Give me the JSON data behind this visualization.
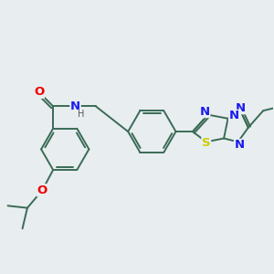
{
  "background_color": "#e8edf0",
  "bond_color": "#3a6b55",
  "atom_colors": {
    "O": "#ee0000",
    "N": "#1a1aee",
    "S": "#cccc00",
    "H": "#444444",
    "C": "#3a6b55"
  },
  "bond_lw": 1.4,
  "font_size": 8.5,
  "xlim": [
    0,
    10
  ],
  "ylim": [
    0,
    10
  ]
}
